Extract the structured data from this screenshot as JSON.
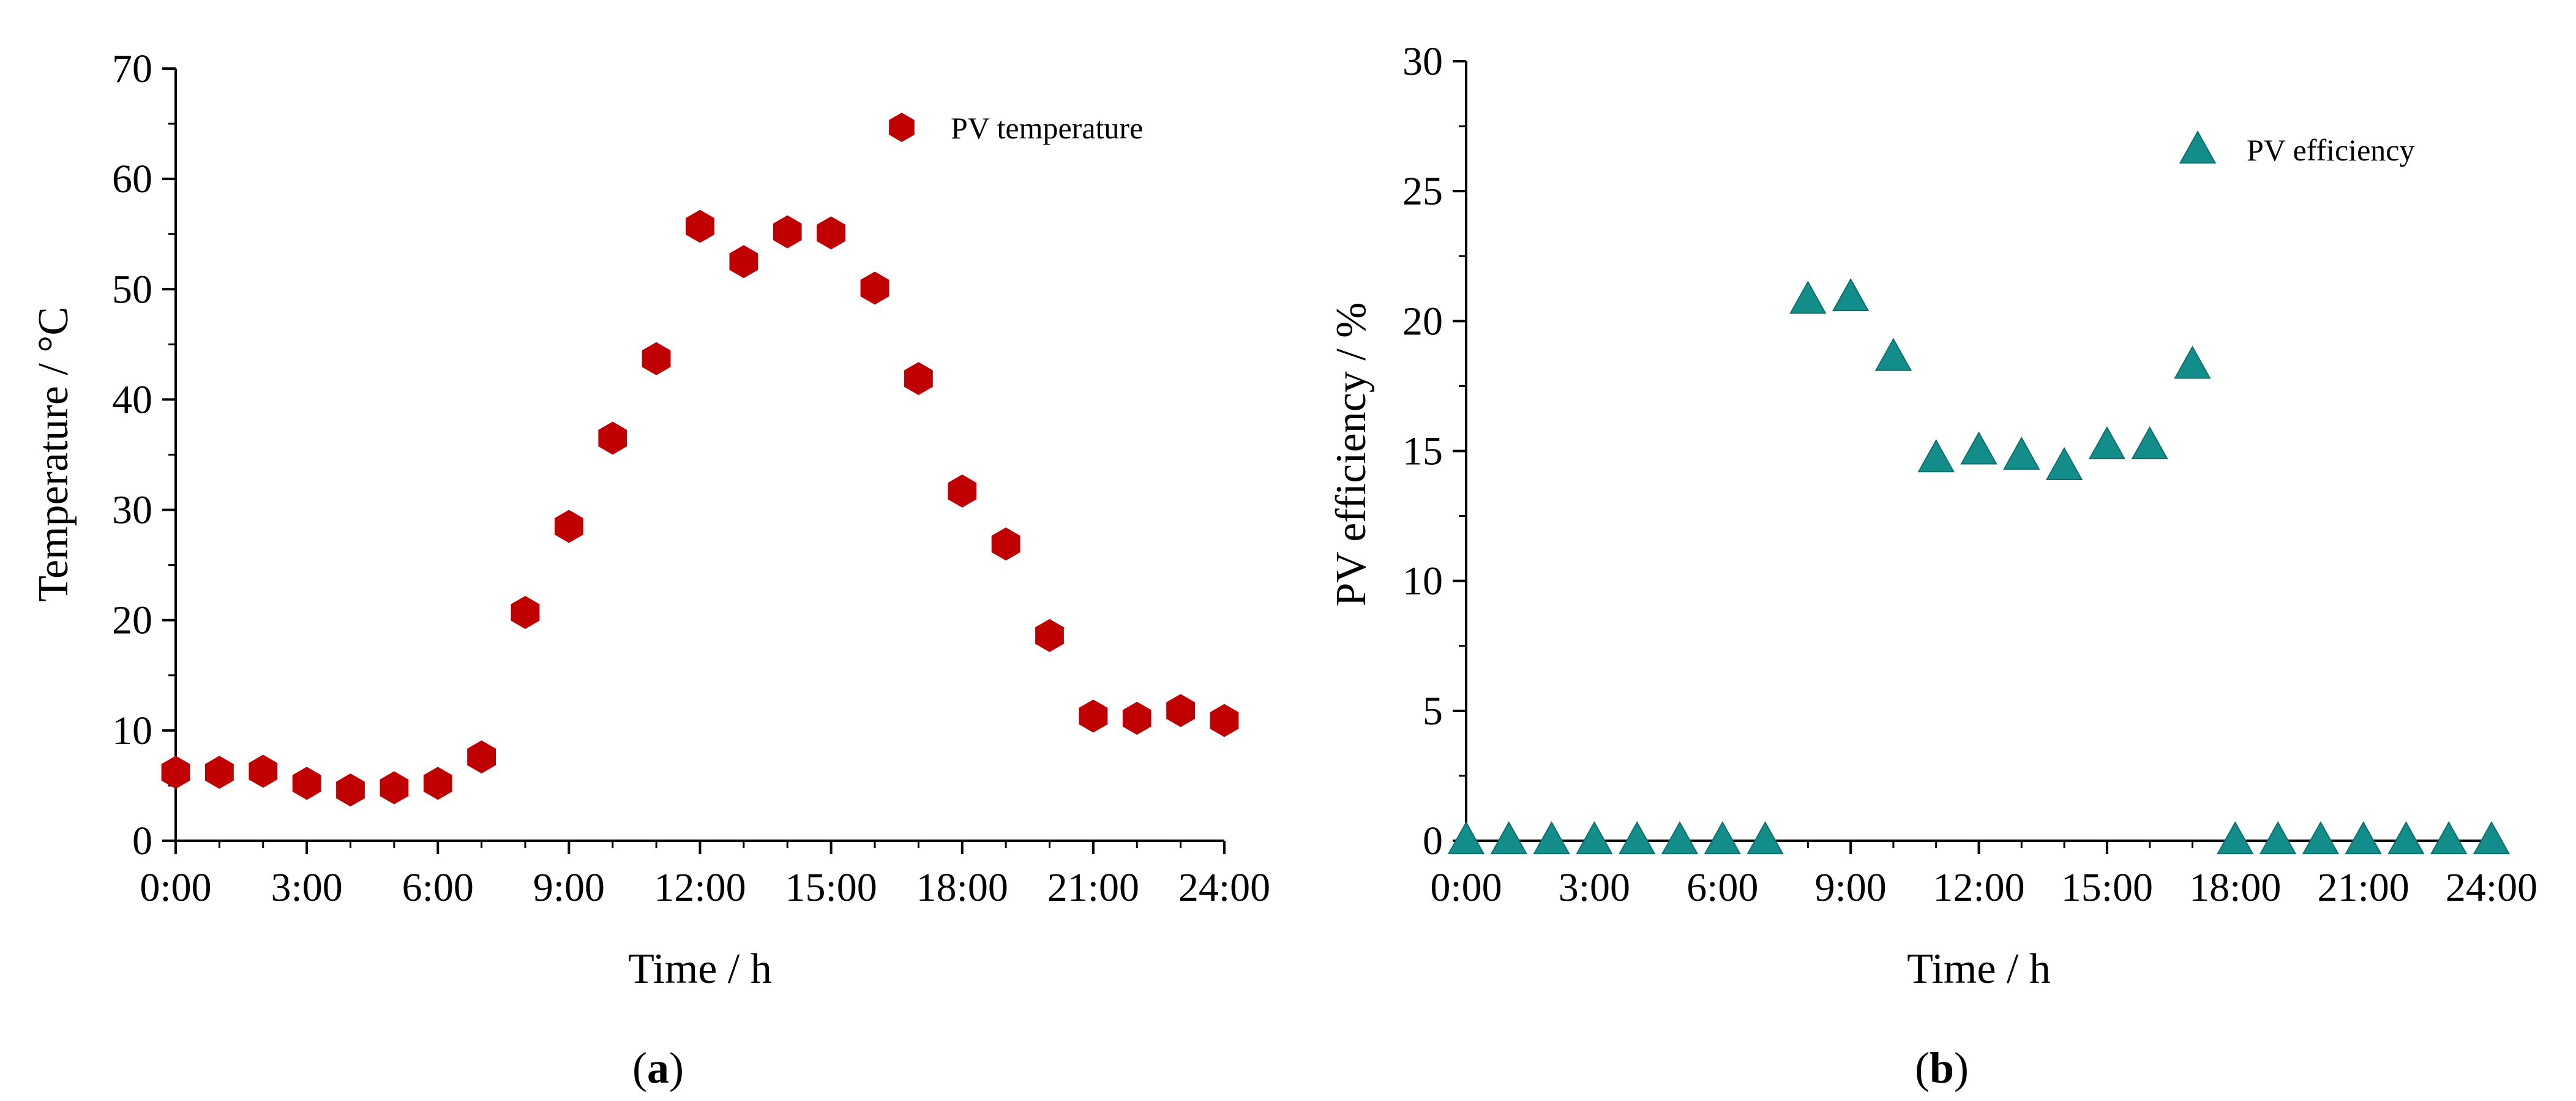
{
  "chart_data": [
    {
      "type": "scatter",
      "xlabel": "Time / h",
      "ylabel": "Temperature / °C",
      "xlim": [
        0,
        24
      ],
      "ylim": [
        0,
        70
      ],
      "xticks": [
        0,
        3,
        6,
        9,
        12,
        15,
        18,
        21,
        24
      ],
      "xtick_labels": [
        "0:00",
        "3:00",
        "6:00",
        "9:00",
        "12:00",
        "15:00",
        "18:00",
        "21:00",
        "24:00"
      ],
      "yticks": [
        0,
        10,
        20,
        30,
        40,
        50,
        60,
        70
      ],
      "ytick_labels": [
        "0",
        "10",
        "20",
        "30",
        "40",
        "50",
        "60",
        "70"
      ],
      "grid": false,
      "legend_position": "top-right",
      "panel_label": "a",
      "series": [
        {
          "name": "PV temperature",
          "marker": "hexagon",
          "color": "#C00000",
          "x": [
            0,
            1,
            2,
            3,
            4,
            5,
            6,
            7,
            8,
            9,
            10,
            11,
            12,
            13,
            14,
            15,
            16,
            17,
            18,
            19,
            20,
            21,
            22,
            23,
            24
          ],
          "y": [
            6.2,
            6.2,
            6.3,
            5.2,
            4.6,
            4.8,
            5.2,
            7.6,
            20.7,
            28.5,
            36.5,
            43.7,
            55.7,
            52.5,
            55.2,
            55.1,
            50.1,
            41.9,
            31.7,
            26.9,
            18.6,
            11.3,
            11.1,
            11.8,
            10.9
          ]
        }
      ]
    },
    {
      "type": "scatter",
      "xlabel": "Time / h",
      "ylabel": "PV efficiency / %",
      "xlim": [
        0,
        24
      ],
      "ylim": [
        0,
        30
      ],
      "xticks": [
        0,
        3,
        6,
        9,
        12,
        15,
        18,
        21,
        24
      ],
      "xtick_labels": [
        "0:00",
        "3:00",
        "6:00",
        "9:00",
        "12:00",
        "15:00",
        "18:00",
        "21:00",
        "24:00"
      ],
      "yticks": [
        0,
        5,
        10,
        15,
        20,
        25,
        30
      ],
      "ytick_labels": [
        "0",
        "5",
        "10",
        "15",
        "20",
        "25",
        "30"
      ],
      "grid": false,
      "legend_position": "top-right",
      "panel_label": "b",
      "series": [
        {
          "name": "PV efficiency",
          "marker": "triangle",
          "color": "#138D8A",
          "x": [
            0,
            1,
            2,
            3,
            4,
            5,
            6,
            7,
            8,
            9,
            10,
            11,
            12,
            13,
            14,
            15,
            16,
            17,
            18,
            19,
            20,
            21,
            22,
            23,
            24
          ],
          "y": [
            0,
            0,
            0,
            0,
            0,
            0,
            0,
            0,
            20.8,
            20.9,
            18.6,
            14.7,
            15.0,
            14.8,
            14.4,
            15.2,
            15.2,
            18.3,
            0,
            0,
            0,
            0,
            0,
            0,
            0
          ]
        }
      ]
    }
  ]
}
